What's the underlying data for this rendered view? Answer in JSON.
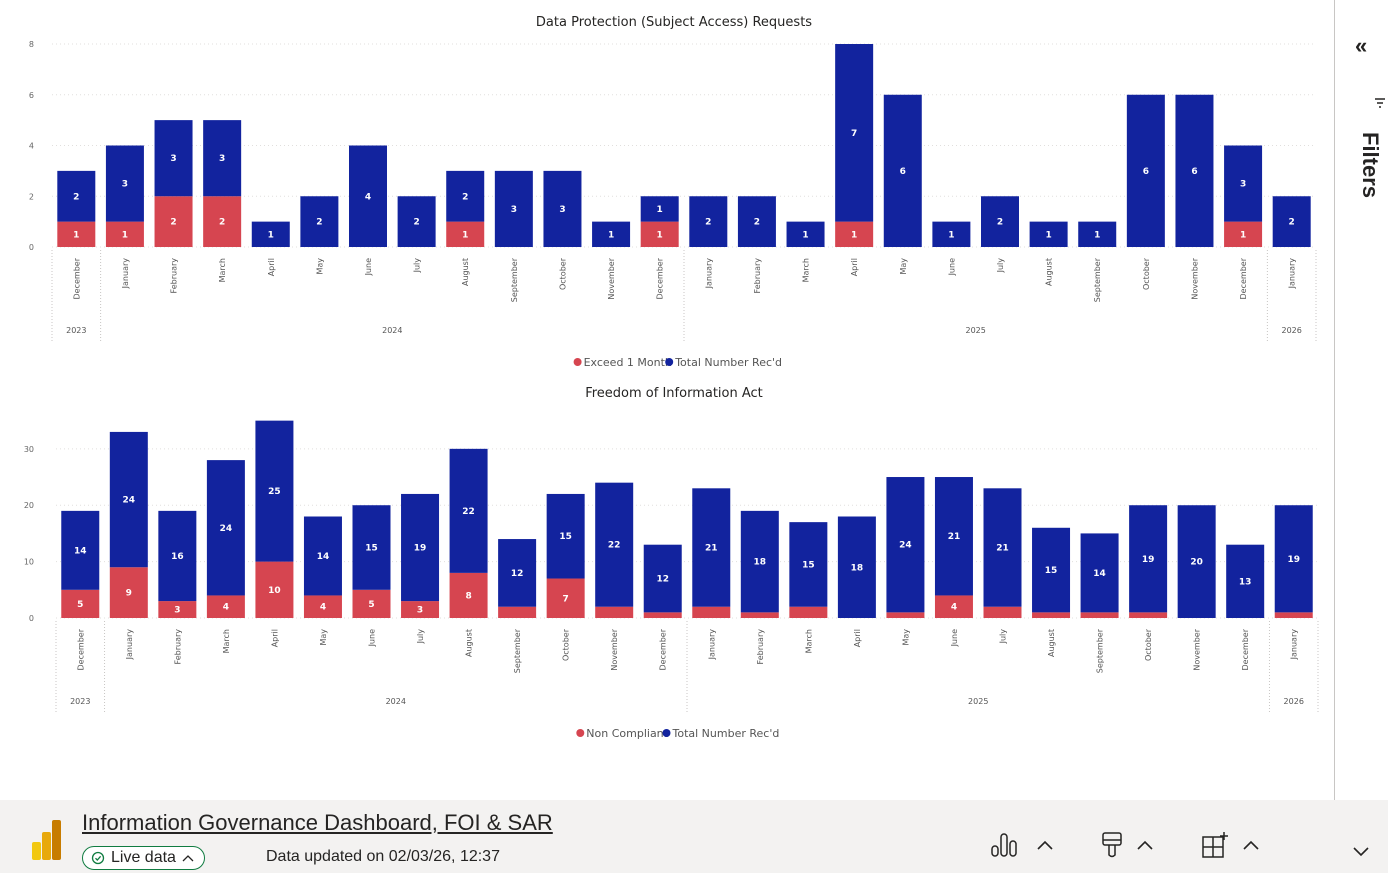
{
  "report": {
    "charts": [
      {
        "id": "sar",
        "chart_data": {
          "type": "bar",
          "stacked": true,
          "title": "Data Protection (Subject Access) Requests",
          "categories": [
            "December",
            "January",
            "February",
            "March",
            "April",
            "May",
            "June",
            "July",
            "August",
            "September",
            "October",
            "November",
            "December",
            "January",
            "February",
            "March",
            "April",
            "May",
            "June",
            "July",
            "August",
            "September",
            "October",
            "November",
            "December",
            "January"
          ],
          "years": [
            {
              "label": "2023",
              "start": 0,
              "end": 0
            },
            {
              "label": "2024",
              "start": 1,
              "end": 12
            },
            {
              "label": "2025",
              "start": 13,
              "end": 24
            },
            {
              "label": "2026",
              "start": 25,
              "end": 25
            }
          ],
          "series": [
            {
              "name": "Exceed 1 Month",
              "color": "#d64550",
              "values": [
                1,
                1,
                2,
                2,
                0,
                0,
                0,
                0,
                1,
                0,
                0,
                0,
                1,
                0,
                0,
                0,
                1,
                0,
                0,
                0,
                0,
                0,
                0,
                0,
                1,
                0
              ]
            },
            {
              "name": "Total Number Rec'd",
              "color": "#12239e",
              "values": [
                2,
                3,
                3,
                3,
                1,
                2,
                4,
                2,
                2,
                3,
                3,
                1,
                1,
                2,
                2,
                1,
                7,
                6,
                1,
                2,
                1,
                1,
                6,
                6,
                3,
                2
              ]
            }
          ],
          "ylim": [
            0,
            8
          ],
          "yticks": [
            0,
            2,
            4,
            6,
            8
          ],
          "legend": "bottom-center",
          "grid": true
        }
      },
      {
        "id": "foi",
        "chart_data": {
          "type": "bar",
          "stacked": true,
          "title": "Freedom of Information Act",
          "categories": [
            "December",
            "January",
            "February",
            "March",
            "April",
            "May",
            "June",
            "July",
            "August",
            "September",
            "October",
            "November",
            "December",
            "January",
            "February",
            "March",
            "April",
            "May",
            "June",
            "July",
            "August",
            "September",
            "October",
            "November",
            "December",
            "January"
          ],
          "years": [
            {
              "label": "2023",
              "start": 0,
              "end": 0
            },
            {
              "label": "2024",
              "start": 1,
              "end": 12
            },
            {
              "label": "2025",
              "start": 13,
              "end": 24
            },
            {
              "label": "2026",
              "start": 25,
              "end": 25
            }
          ],
          "series": [
            {
              "name": "Non Compliant",
              "color": "#d64550",
              "values": [
                5,
                9,
                3,
                4,
                10,
                4,
                5,
                3,
                8,
                2,
                7,
                2,
                1,
                2,
                1,
                2,
                0,
                1,
                4,
                2,
                1,
                1,
                1,
                0,
                0,
                1
              ],
              "labels": [
                5,
                9,
                3,
                4,
                10,
                4,
                5,
                3,
                8,
                null,
                7,
                null,
                null,
                null,
                null,
                null,
                null,
                null,
                4,
                null,
                null,
                null,
                null,
                null,
                null,
                null
              ]
            },
            {
              "name": "Total Number Rec'd",
              "color": "#12239e",
              "values": [
                14,
                24,
                16,
                24,
                25,
                14,
                15,
                19,
                22,
                12,
                15,
                22,
                12,
                21,
                18,
                15,
                18,
                24,
                21,
                21,
                15,
                14,
                19,
                20,
                13,
                19
              ]
            }
          ],
          "ylim": [
            0,
            36
          ],
          "yticks": [
            0,
            10,
            20,
            30
          ],
          "legend": "bottom-center",
          "grid": true
        }
      }
    ]
  },
  "filters": {
    "label": "Filters",
    "collapse_glyph": "«"
  },
  "footer": {
    "title": "Information Governance Dashboard, FOI & SAR",
    "live_label": "Live data",
    "updated": "Data updated on 02/03/26, 12:37"
  },
  "icons": [
    "powerbi-logo-icon",
    "chart-icon",
    "paint-icon",
    "add-visual-icon",
    "chevron-up-icon",
    "chevron-down-icon",
    "check-circle-icon",
    "filter-icon"
  ]
}
